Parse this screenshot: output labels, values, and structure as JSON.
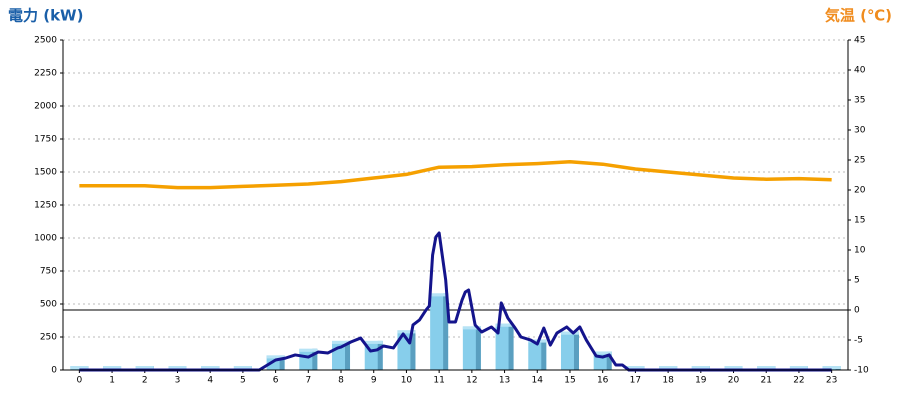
{
  "chart_data": {
    "type": "combo",
    "y_label": "電力 (kW)",
    "y2_label": "気温 (℃)",
    "categories": [
      "0",
      "1",
      "2",
      "3",
      "4",
      "5",
      "6",
      "7",
      "8",
      "9",
      "10",
      "11",
      "12",
      "13",
      "14",
      "15",
      "16",
      "17",
      "18",
      "19",
      "20",
      "21",
      "22",
      "23"
    ],
    "ylim": [
      0,
      2500
    ],
    "yticks": [
      0,
      250,
      500,
      750,
      1000,
      1250,
      1500,
      1750,
      2000,
      2250,
      2500
    ],
    "y2lim": [
      -10,
      45
    ],
    "y2ticks": [
      -10,
      -5,
      0,
      5,
      10,
      15,
      20,
      25,
      30,
      35,
      40,
      45
    ],
    "grid": true,
    "series": [
      {
        "type": "bar",
        "color": "#87ceeb",
        "values": [
          0,
          0,
          0,
          0,
          0,
          0,
          80,
          130,
          190,
          190,
          270,
          550,
          300,
          320,
          200,
          260,
          110,
          0,
          0,
          0,
          0,
          0,
          0,
          0
        ]
      },
      {
        "type": "line",
        "color": "#14148c",
        "x": [
          0,
          5.5,
          6.0,
          6.3,
          6.6,
          7.0,
          7.3,
          7.6,
          7.9,
          8.0,
          8.3,
          8.6,
          8.9,
          9.1,
          9.3,
          9.6,
          9.9,
          10.1,
          10.2,
          10.4,
          10.6,
          10.7,
          10.8,
          10.9,
          11.0,
          11.2,
          11.3,
          11.5,
          11.7,
          11.8,
          11.9,
          12.1,
          12.3,
          12.6,
          12.8,
          12.9,
          13.1,
          13.3,
          13.5,
          13.8,
          14.0,
          14.2,
          14.4,
          14.6,
          14.9,
          15.1,
          15.3,
          15.5,
          15.8,
          16.0,
          16.2,
          16.4,
          16.6,
          16.8,
          17,
          23
        ],
        "values": [
          0,
          0,
          76,
          90,
          114,
          98,
          136,
          129,
          167,
          174,
          212,
          242,
          144,
          152,
          182,
          167,
          273,
          205,
          341,
          379,
          455,
          485,
          871,
          1008,
          1038,
          682,
          364,
          364,
          530,
          591,
          606,
          341,
          288,
          326,
          280,
          508,
          394,
          326,
          250,
          227,
          197,
          318,
          189,
          280,
          326,
          280,
          326,
          227,
          106,
          98,
          114,
          38,
          38,
          0,
          0,
          0
        ]
      },
      {
        "type": "line",
        "axis": "y2",
        "color": "#f5a000",
        "values": [
          20.7,
          20.7,
          20.7,
          20.4,
          20.4,
          20.6,
          20.8,
          21.0,
          21.4,
          22.0,
          22.6,
          23.8,
          23.9,
          24.2,
          24.4,
          24.7,
          24.3,
          23.5,
          23.0,
          22.5,
          22.0,
          21.8,
          21.9,
          21.7
        ]
      }
    ]
  }
}
